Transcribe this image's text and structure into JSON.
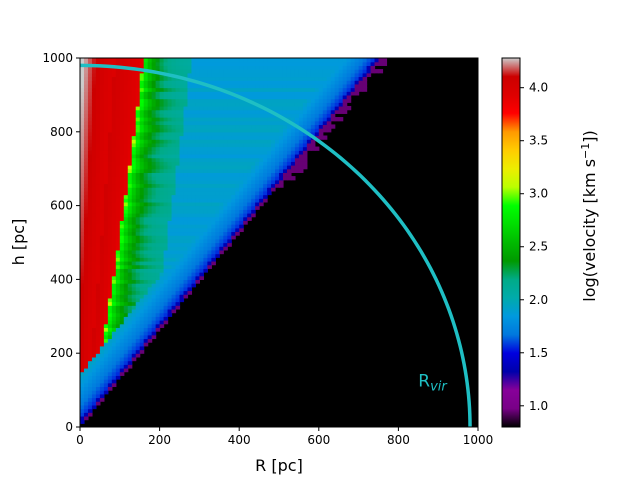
{
  "chart_data": {
    "type": "heatmap",
    "xlabel": "R [pc]",
    "ylabel": "h [pc]",
    "xlim": [
      0,
      1000
    ],
    "ylim": [
      0,
      1000
    ],
    "x_ticks": [
      "0",
      "200",
      "400",
      "600",
      "800",
      "1000"
    ],
    "y_ticks": [
      "0",
      "200",
      "400",
      "600",
      "800",
      "1000"
    ],
    "colorbar": {
      "label_main": "log(velocity [km s",
      "label_sup": "−1",
      "label_end": "])",
      "range": [
        0.8,
        4.28
      ],
      "ticks": [
        "1.0",
        "1.5",
        "2.0",
        "2.5",
        "3.0",
        "3.5",
        "4.0"
      ],
      "colormap": "nipy_spectral"
    },
    "background_color": "#000000",
    "field_structure": {
      "inner_boundary_slope_h_per_R": 1.32,
      "outer_region_value": 1.9,
      "inner_axis_value": 4.25,
      "high_velocity_front_R_at_h0": 5,
      "high_velocity_front_R_at_h1000": 160,
      "edge_layer_value": 0.95
    },
    "annotation": {
      "type": "circle_arc",
      "radius": 980,
      "color": "#1fbfc4",
      "label_main": "R",
      "label_sub": "vir",
      "label_position_data": [
        850,
        110
      ]
    }
  }
}
